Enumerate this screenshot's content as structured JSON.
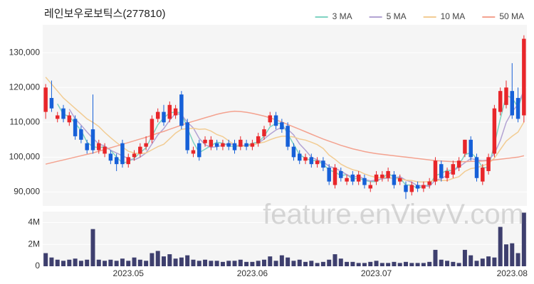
{
  "chart_data": [
    {
      "type": "candlestick",
      "title": "레인보우로보틱스(277810)",
      "up_color": "#e8262a",
      "down_color": "#1660d8",
      "open": [
        113000,
        117000,
        111000,
        114000,
        110000,
        111000,
        108000,
        104000,
        108000,
        102000,
        101000,
        101000,
        100000,
        104000,
        98000,
        100000,
        101000,
        103000,
        105000,
        111000,
        113000,
        111000,
        112000,
        118000,
        110000,
        101000,
        104000,
        104000,
        103000,
        104000,
        103000,
        104000,
        104000,
        103000,
        104000,
        103000,
        104000,
        106000,
        110000,
        112000,
        110000,
        109000,
        103000,
        101000,
        99000,
        100000,
        98000,
        99000,
        97000,
        92000,
        96000,
        93000,
        95000,
        93000,
        94000,
        91000,
        93000,
        94000,
        94000,
        95000,
        93000,
        92000,
        90000,
        92000,
        91000,
        92000,
        93000,
        98000,
        94000,
        95000,
        97000,
        101000,
        105000,
        100000,
        93000,
        96000,
        101000,
        113000,
        115000,
        119000,
        117000,
        112000
      ],
      "high": [
        121000,
        122000,
        113000,
        115000,
        113000,
        112000,
        109000,
        105000,
        118000,
        105000,
        104000,
        102000,
        101000,
        105000,
        101000,
        102000,
        104000,
        106000,
        112000,
        114000,
        115000,
        116000,
        115000,
        119000,
        111000,
        103000,
        105000,
        106000,
        106000,
        105000,
        105000,
        105000,
        105000,
        106000,
        105000,
        105000,
        107000,
        109000,
        113000,
        113000,
        111000,
        110000,
        104000,
        102000,
        101000,
        101000,
        100000,
        100000,
        98000,
        98000,
        97000,
        95000,
        96000,
        96000,
        95000,
        93000,
        96000,
        96000,
        97000,
        96000,
        95000,
        93000,
        93000,
        93000,
        93000,
        94000,
        100000,
        99000,
        97000,
        99000,
        100000,
        105000,
        106000,
        101000,
        98000,
        101000,
        115000,
        120000,
        122000,
        127000,
        120000,
        135000
      ],
      "low": [
        111000,
        113000,
        110000,
        110000,
        109000,
        105000,
        104000,
        101000,
        101000,
        101000,
        100000,
        98000,
        96000,
        97000,
        97000,
        99000,
        100000,
        102000,
        104000,
        110000,
        109000,
        110000,
        111000,
        108000,
        101000,
        100000,
        99000,
        103000,
        102000,
        102000,
        102000,
        102000,
        101000,
        102000,
        102000,
        102000,
        103000,
        105000,
        109000,
        108000,
        107000,
        102000,
        99000,
        98000,
        98000,
        97000,
        97000,
        96000,
        92000,
        91000,
        93000,
        92000,
        92000,
        92000,
        91000,
        90000,
        92000,
        93000,
        93000,
        91000,
        92000,
        88000,
        89000,
        90000,
        90000,
        91000,
        92000,
        93000,
        93000,
        94000,
        96000,
        100000,
        99000,
        93000,
        92000,
        95000,
        100000,
        112000,
        114000,
        111000,
        110000,
        110000
      ],
      "close": [
        120000,
        114000,
        112000,
        111000,
        112000,
        106000,
        105000,
        102000,
        102000,
        104000,
        103000,
        99000,
        98000,
        98000,
        100000,
        101000,
        103000,
        104000,
        111000,
        113000,
        110000,
        115000,
        114000,
        109000,
        102000,
        102000,
        100000,
        105000,
        105000,
        103000,
        104000,
        103000,
        102000,
        105000,
        103000,
        104000,
        106000,
        108000,
        112000,
        109000,
        108000,
        103000,
        100000,
        99000,
        100000,
        98000,
        99000,
        97000,
        93000,
        97000,
        94000,
        94000,
        93000,
        95000,
        92000,
        92000,
        95000,
        95000,
        96000,
        92000,
        94000,
        90000,
        92000,
        91000,
        92000,
        93000,
        99000,
        94000,
        96000,
        98000,
        99000,
        105000,
        100000,
        94000,
        97000,
        100000,
        114000,
        119000,
        120000,
        112000,
        111000,
        134000
      ],
      "series": [
        {
          "name": "3 MA",
          "color": "#7fd3c2",
          "values": [
            null,
            null,
            115300,
            112300,
            111700,
            109700,
            107700,
            104300,
            103000,
            102700,
            103000,
            102000,
            100000,
            98300,
            98700,
            99700,
            101300,
            102700,
            106000,
            109300,
            111300,
            112700,
            113000,
            112700,
            108300,
            104300,
            101300,
            102300,
            103300,
            104300,
            104000,
            103300,
            103000,
            103300,
            103300,
            104000,
            104300,
            106000,
            108700,
            109700,
            109700,
            106700,
            103700,
            100700,
            99700,
            99000,
            99000,
            98000,
            96300,
            95700,
            94700,
            95000,
            93700,
            94000,
            93300,
            93000,
            93000,
            94000,
            95300,
            94300,
            94000,
            92000,
            92000,
            91000,
            91700,
            92000,
            94700,
            95300,
            96300,
            96000,
            97700,
            100700,
            101300,
            99700,
            97000,
            97000,
            103700,
            111000,
            117700,
            117000,
            114300,
            119000
          ]
        },
        {
          "name": "5 MA",
          "color": "#b3a3d3",
          "values": [
            null,
            null,
            null,
            null,
            113800,
            111000,
            109200,
            107200,
            105400,
            103800,
            103200,
            102000,
            101200,
            100400,
            99600,
            99200,
            100000,
            101200,
            103800,
            106400,
            108200,
            110600,
            112600,
            112200,
            110000,
            108400,
            105400,
            103600,
            102800,
            103000,
            103400,
            104000,
            103400,
            103400,
            103400,
            103400,
            104000,
            105200,
            106600,
            107800,
            108600,
            108000,
            106400,
            103800,
            102000,
            100000,
            99200,
            98600,
            97400,
            96800,
            96000,
            95000,
            94200,
            94600,
            93600,
            93200,
            93400,
            93800,
            94000,
            94000,
            94400,
            93400,
            92800,
            91800,
            91800,
            91600,
            93400,
            93800,
            94800,
            96000,
            97200,
            98400,
            99600,
            99200,
            99000,
            99200,
            101000,
            104800,
            110000,
            113000,
            115200,
            119200
          ]
        },
        {
          "name": "10 MA",
          "color": "#f2cc93",
          "values": [
            123000,
            121000,
            119000,
            117000,
            115500,
            114000,
            112500,
            111000,
            110000,
            108800,
            107100,
            105600,
            104200,
            102900,
            101700,
            101200,
            101000,
            101200,
            102100,
            103000,
            103700,
            105300,
            106900,
            108000,
            108200,
            108300,
            108000,
            108100,
            107500,
            106500,
            105900,
            104700,
            103500,
            103100,
            103200,
            103400,
            104000,
            104300,
            105000,
            105600,
            106000,
            106000,
            105800,
            105200,
            104900,
            104300,
            103600,
            102500,
            100600,
            99400,
            98000,
            97100,
            96400,
            96000,
            95200,
            94600,
            94200,
            94000,
            94300,
            93800,
            93800,
            93400,
            93300,
            92900,
            92900,
            93000,
            93400,
            93300,
            93300,
            93900,
            94400,
            95900,
            96700,
            97000,
            97500,
            98200,
            99700,
            102200,
            104600,
            106000,
            107200,
            110100
          ]
        },
        {
          "name": "50 MA",
          "color": "#f4a28f",
          "values": [
            98000,
            98400,
            98800,
            99200,
            99600,
            100000,
            100400,
            100800,
            101200,
            101700,
            102200,
            102700,
            103200,
            103700,
            104200,
            104700,
            105200,
            105700,
            106300,
            106900,
            107400,
            108000,
            108600,
            109200,
            109800,
            110300,
            110800,
            111300,
            111800,
            112300,
            112700,
            113000,
            113200,
            113100,
            112900,
            112600,
            112200,
            111800,
            111300,
            110700,
            110100,
            109400,
            108700,
            108000,
            107300,
            106600,
            105900,
            105200,
            104600,
            104000,
            103400,
            102900,
            102400,
            102000,
            101600,
            101300,
            101000,
            100800,
            100600,
            100400,
            100200,
            100000,
            99800,
            99600,
            99400,
            99200,
            99000,
            98900,
            98800,
            98700,
            98700,
            98700,
            98800,
            98800,
            98900,
            99000,
            99200,
            99400,
            99600,
            99800,
            100000,
            100400
          ]
        }
      ],
      "ylim": [
        86000,
        138000
      ],
      "yticks": [
        {
          "value": 90000,
          "label": "90,000"
        },
        {
          "value": 100000,
          "label": "100,000"
        },
        {
          "value": 110000,
          "label": "110,000"
        },
        {
          "value": 120000,
          "label": "120,000"
        },
        {
          "value": 130000,
          "label": "130,000"
        }
      ],
      "grid": true,
      "legend": "upper right"
    },
    {
      "type": "bar",
      "color": "#3e3f6e",
      "categories": [
        null,
        null,
        null,
        null,
        null,
        null,
        null,
        null,
        null,
        null,
        null,
        null,
        null,
        null,
        "2023.05",
        null,
        null,
        null,
        null,
        null,
        null,
        null,
        null,
        null,
        null,
        null,
        null,
        null,
        null,
        null,
        null,
        null,
        null,
        null,
        null,
        "2023.06",
        null,
        null,
        null,
        null,
        null,
        null,
        null,
        null,
        null,
        null,
        null,
        null,
        null,
        null,
        null,
        null,
        null,
        null,
        null,
        null,
        "2023.07",
        null,
        null,
        null,
        null,
        null,
        null,
        null,
        null,
        null,
        null,
        null,
        null,
        null,
        null,
        null,
        null,
        null,
        null,
        null,
        null,
        null,
        null,
        "2023.08",
        null,
        null
      ],
      "values": [
        1200000,
        800000,
        600000,
        500000,
        600000,
        700000,
        500000,
        600000,
        3400000,
        600000,
        500000,
        600000,
        500000,
        700000,
        500000,
        800000,
        600000,
        500000,
        1200000,
        1400000,
        900000,
        1100000,
        700000,
        800000,
        1000000,
        600000,
        500000,
        600000,
        500000,
        500000,
        400000,
        500000,
        500000,
        600000,
        400000,
        400000,
        500000,
        600000,
        900000,
        500000,
        1000000,
        800000,
        500000,
        600000,
        400000,
        500000,
        300000,
        400000,
        600000,
        1100000,
        700000,
        400000,
        400000,
        300000,
        300000,
        400000,
        500000,
        300000,
        300000,
        400000,
        300000,
        400000,
        300000,
        300000,
        300000,
        400000,
        1500000,
        600000,
        500000,
        400000,
        300000,
        1500000,
        1000000,
        500000,
        700000,
        900000,
        800000,
        3600000,
        2000000,
        2100000,
        1200000,
        4900000
      ],
      "ylim": [
        0,
        5000000
      ],
      "yticks": [
        0,
        {
          "value": 2000000,
          "label": "2M"
        },
        {
          "value": 4000000,
          "label": "4M"
        }
      ],
      "grid": true
    },
    {
      "type": "watermark",
      "text": "feature.enVievV.com"
    }
  ]
}
